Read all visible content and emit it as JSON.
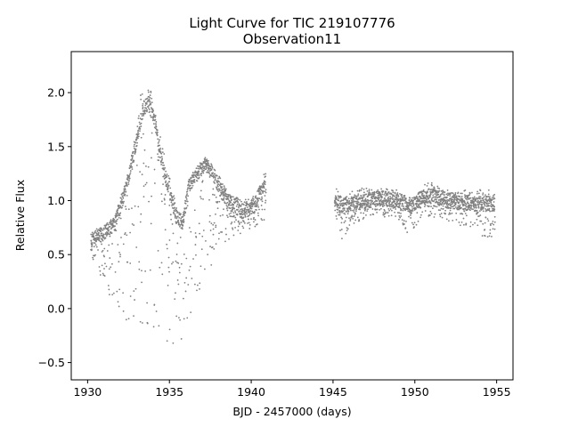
{
  "chart_data": {
    "type": "scatter",
    "title": "Light Curve for TIC 219107776",
    "subtitle": "Observation11",
    "xlabel": "BJD - 2457000 (days)",
    "ylabel": "Relative Flux",
    "xlim": [
      1929.0,
      1956.0
    ],
    "ylim": [
      -0.66,
      2.38
    ],
    "xticks": [
      1930,
      1935,
      1940,
      1945,
      1950,
      1955
    ],
    "yticks": [
      -0.5,
      0.0,
      0.5,
      1.0,
      1.5,
      2.0
    ],
    "ytick_labels": [
      "−0.5",
      "0.0",
      "0.5",
      "1.0",
      "1.5",
      "2.0"
    ],
    "grid": false,
    "legend": "none",
    "marker_color": "#808080",
    "segments": [
      {
        "name": "segment-1",
        "x_range": [
          1930.2,
          1940.9
        ],
        "upper_envelope": [
          [
            1930.2,
            0.75
          ],
          [
            1931.0,
            0.75
          ],
          [
            1931.7,
            0.85
          ],
          [
            1932.5,
            1.25
          ],
          [
            1933.0,
            1.7
          ],
          [
            1933.4,
            2.2
          ],
          [
            1933.7,
            2.1
          ],
          [
            1934.1,
            1.95
          ],
          [
            1934.6,
            1.5
          ],
          [
            1935.0,
            1.25
          ],
          [
            1935.4,
            0.95
          ],
          [
            1935.8,
            0.9
          ],
          [
            1936.2,
            1.2
          ],
          [
            1936.7,
            1.3
          ],
          [
            1937.2,
            1.4
          ],
          [
            1937.8,
            1.3
          ],
          [
            1938.3,
            1.15
          ],
          [
            1938.9,
            1.05
          ],
          [
            1939.5,
            1.0
          ],
          [
            1940.2,
            1.05
          ],
          [
            1940.9,
            1.3
          ]
        ],
        "core_band": [
          [
            1930.2,
            0.65
          ],
          [
            1931.0,
            0.7
          ],
          [
            1931.7,
            0.8
          ],
          [
            1932.5,
            1.2
          ],
          [
            1933.0,
            1.55
          ],
          [
            1933.4,
            1.85
          ],
          [
            1933.7,
            1.9
          ],
          [
            1934.1,
            1.75
          ],
          [
            1934.6,
            1.3
          ],
          [
            1935.0,
            1.1
          ],
          [
            1935.4,
            0.85
          ],
          [
            1935.8,
            0.8
          ],
          [
            1936.2,
            1.15
          ],
          [
            1936.7,
            1.25
          ],
          [
            1937.2,
            1.35
          ],
          [
            1937.8,
            1.2
          ],
          [
            1938.3,
            1.05
          ],
          [
            1938.9,
            0.95
          ],
          [
            1939.5,
            0.9
          ],
          [
            1940.2,
            0.95
          ],
          [
            1940.9,
            1.2
          ]
        ],
        "lower_envelope": [
          [
            1930.2,
            0.5
          ],
          [
            1931.0,
            0.2
          ],
          [
            1931.7,
            0.0
          ],
          [
            1932.5,
            -0.15
          ],
          [
            1933.0,
            -0.3
          ],
          [
            1933.4,
            -0.4
          ],
          [
            1933.7,
            -0.5
          ],
          [
            1934.1,
            -0.52
          ],
          [
            1934.6,
            -0.5
          ],
          [
            1935.0,
            -0.45
          ],
          [
            1935.4,
            -0.45
          ],
          [
            1935.8,
            -0.4
          ],
          [
            1936.2,
            -0.15
          ],
          [
            1936.7,
            0.1
          ],
          [
            1937.2,
            0.2
          ],
          [
            1937.8,
            0.45
          ],
          [
            1938.3,
            0.6
          ],
          [
            1938.9,
            0.65
          ],
          [
            1939.5,
            0.7
          ],
          [
            1940.2,
            0.75
          ],
          [
            1940.9,
            0.8
          ]
        ]
      },
      {
        "name": "segment-2",
        "x_range": [
          1945.1,
          1954.9
        ],
        "upper_envelope": [
          [
            1945.1,
            1.25
          ],
          [
            1945.6,
            1.0
          ],
          [
            1946.2,
            1.1
          ],
          [
            1947.0,
            1.12
          ],
          [
            1948.0,
            1.12
          ],
          [
            1949.0,
            1.1
          ],
          [
            1949.8,
            1.0
          ],
          [
            1950.4,
            1.15
          ],
          [
            1951.0,
            1.17
          ],
          [
            1952.0,
            1.1
          ],
          [
            1953.0,
            1.1
          ],
          [
            1954.0,
            1.1
          ],
          [
            1954.9,
            1.1
          ]
        ],
        "core_band": [
          [
            1945.1,
            1.0
          ],
          [
            1945.6,
            0.95
          ],
          [
            1946.2,
            0.97
          ],
          [
            1947.0,
            1.0
          ],
          [
            1948.0,
            1.02
          ],
          [
            1949.0,
            1.0
          ],
          [
            1949.8,
            0.95
          ],
          [
            1950.4,
            1.02
          ],
          [
            1951.0,
            1.05
          ],
          [
            1952.0,
            1.0
          ],
          [
            1953.0,
            0.98
          ],
          [
            1954.0,
            0.97
          ],
          [
            1954.9,
            0.97
          ]
        ],
        "lower_envelope": [
          [
            1945.1,
            0.85
          ],
          [
            1945.6,
            0.62
          ],
          [
            1946.2,
            0.75
          ],
          [
            1947.0,
            0.85
          ],
          [
            1948.0,
            0.85
          ],
          [
            1949.0,
            0.82
          ],
          [
            1949.8,
            0.65
          ],
          [
            1950.4,
            0.82
          ],
          [
            1951.0,
            0.85
          ],
          [
            1952.0,
            0.8
          ],
          [
            1953.0,
            0.75
          ],
          [
            1954.0,
            0.68
          ],
          [
            1954.9,
            0.62
          ]
        ]
      }
    ]
  }
}
